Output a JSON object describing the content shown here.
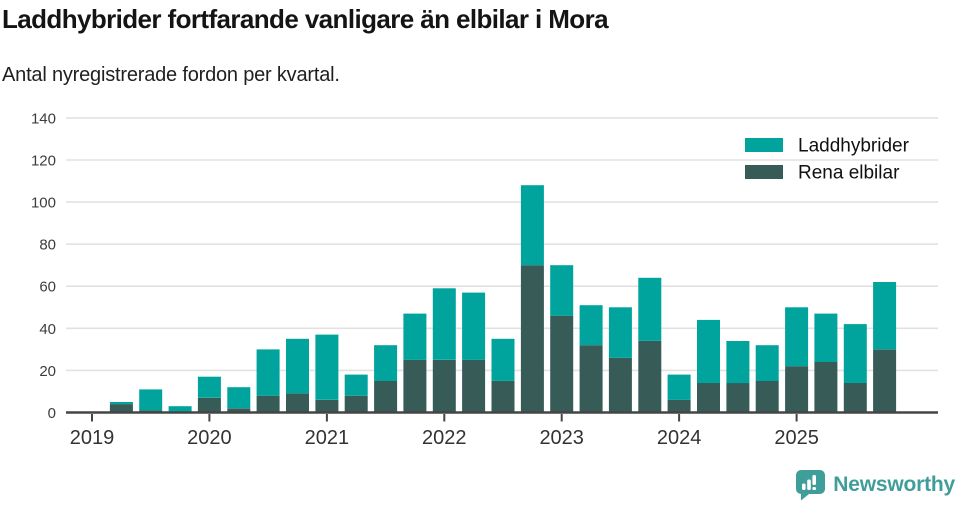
{
  "header": {
    "title": "Laddhybrider fortfarande vanligare än elbilar i Mora",
    "subtitle": "Antal nyregistrerade fordon per kvartal."
  },
  "legend": [
    {
      "label": "Laddhybrider",
      "color": "#00a49c"
    },
    {
      "label": "Rena elbilar",
      "color": "#375c57"
    }
  ],
  "footer": {
    "brand": "Newsworthy",
    "brand_color": "#3f9e9a"
  },
  "colors": {
    "laddhybrider": "#00a49c",
    "rena_elbilar": "#375c57",
    "gridline": "#e2e2e2",
    "axis": "#454545",
    "tick_text": "#3d3d3d"
  },
  "chart_data": {
    "type": "bar",
    "stacked": true,
    "title": "Laddhybrider fortfarande vanligare än elbilar i Mora",
    "subtitle": "Antal nyregistrerade fordon per kvartal.",
    "xlabel": "",
    "ylabel": "",
    "ylim": [
      0,
      140
    ],
    "yticks": [
      0,
      20,
      40,
      60,
      80,
      100,
      120,
      140
    ],
    "grid": true,
    "legend_position": "top-right",
    "x_tick_labels": [
      "2019",
      "2020",
      "2021",
      "2022",
      "2023",
      "2024",
      "2025"
    ],
    "categories": [
      "2019Q1",
      "2019Q2",
      "2019Q3",
      "2019Q4",
      "2020Q1",
      "2020Q2",
      "2020Q3",
      "2020Q4",
      "2021Q1",
      "2021Q2",
      "2021Q3",
      "2021Q4",
      "2022Q1",
      "2022Q2",
      "2022Q3",
      "2022Q4",
      "2023Q1",
      "2023Q2",
      "2023Q3",
      "2023Q4",
      "2024Q1",
      "2024Q2",
      "2024Q3",
      "2024Q4",
      "2025Q1",
      "2025Q2",
      "2025Q3",
      "2025Q4"
    ],
    "series": [
      {
        "name": "Laddhybrider",
        "color": "#00a49c",
        "values": [
          0,
          1,
          10,
          3,
          10,
          10,
          22,
          26,
          31,
          10,
          17,
          22,
          34,
          32,
          20,
          38,
          24,
          19,
          24,
          30,
          12,
          30,
          20,
          17,
          28,
          23,
          28,
          32
        ]
      },
      {
        "name": "Rena elbilar",
        "color": "#375c57",
        "values": [
          0,
          4,
          1,
          0,
          7,
          2,
          8,
          9,
          6,
          8,
          15,
          25,
          25,
          25,
          15,
          70,
          46,
          32,
          26,
          34,
          6,
          14,
          14,
          15,
          22,
          24,
          14,
          30
        ]
      }
    ],
    "stack_totals": [
      0,
      5,
      11,
      3,
      17,
      12,
      30,
      35,
      37,
      18,
      32,
      47,
      59,
      57,
      35,
      108,
      70,
      51,
      50,
      64,
      18,
      44,
      34,
      32,
      50,
      47,
      42,
      62
    ]
  }
}
